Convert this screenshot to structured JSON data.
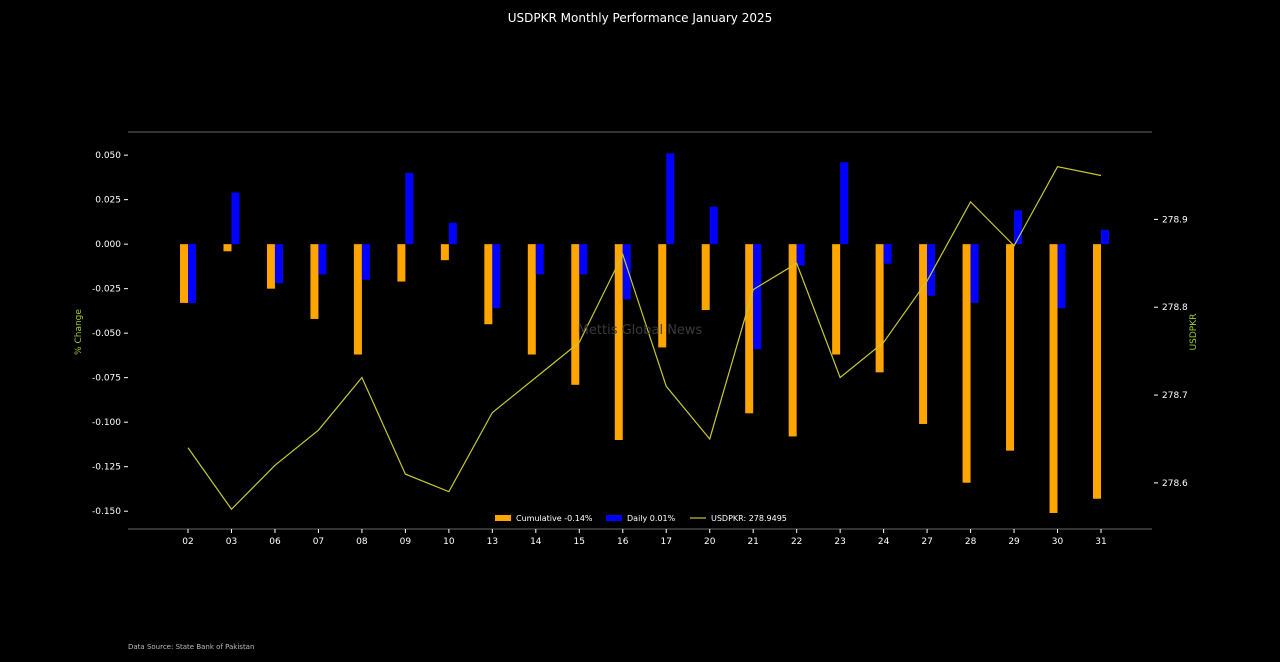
{
  "chart_data": {
    "type": "bar",
    "title": "USDPKR Monthly Performance January 2025",
    "xlabel": "",
    "ylabel": "% Change",
    "y2label": "USDPKR",
    "categories": [
      "02",
      "03",
      "06",
      "07",
      "08",
      "09",
      "10",
      "13",
      "14",
      "15",
      "16",
      "17",
      "20",
      "21",
      "22",
      "23",
      "24",
      "27",
      "28",
      "29",
      "30",
      "31"
    ],
    "ylim": [
      -0.16,
      0.063
    ],
    "y2lim": [
      278.5475,
      278.9995
    ],
    "yticks": [
      "0.050",
      "0.025",
      "0.000",
      "-0.025",
      "-0.050",
      "-0.075",
      "-0.100",
      "-0.125",
      "-0.150"
    ],
    "y2ticks": [
      "278.9",
      "278.8",
      "278.7",
      "278.6"
    ],
    "series": [
      {
        "name": "Cumulative -0.14%",
        "kind": "bar",
        "color": "#FFA500",
        "values": [
          -0.033,
          -0.004,
          -0.025,
          -0.042,
          -0.062,
          -0.021,
          -0.009,
          -0.045,
          -0.062,
          -0.079,
          -0.11,
          -0.058,
          -0.037,
          -0.095,
          -0.108,
          -0.062,
          -0.072,
          -0.101,
          -0.134,
          -0.116,
          -0.151,
          -0.143
        ]
      },
      {
        "name": "Daily 0.01%",
        "kind": "bar",
        "color": "#0000FF",
        "values": [
          -0.033,
          0.029,
          -0.022,
          -0.017,
          -0.02,
          0.04,
          0.012,
          -0.036,
          -0.017,
          -0.017,
          -0.031,
          0.051,
          0.021,
          -0.059,
          -0.012,
          0.046,
          -0.011,
          -0.029,
          -0.033,
          0.019,
          -0.036,
          0.008
        ]
      },
      {
        "name": "USDPKR: 278.9495",
        "kind": "line",
        "axis": "right",
        "color": "#C8C832",
        "values": [
          278.64,
          278.57,
          278.62,
          278.66,
          278.72,
          278.61,
          278.59,
          278.68,
          278.72,
          278.76,
          278.86,
          278.71,
          278.65,
          278.82,
          278.85,
          278.72,
          278.76,
          278.83,
          278.92,
          278.87,
          278.96,
          278.95
        ]
      }
    ],
    "legend_position": "bottom-center",
    "grid": false
  },
  "watermark": "Mettis Global News",
  "source": "Data Source: State Bank of Pakistan"
}
